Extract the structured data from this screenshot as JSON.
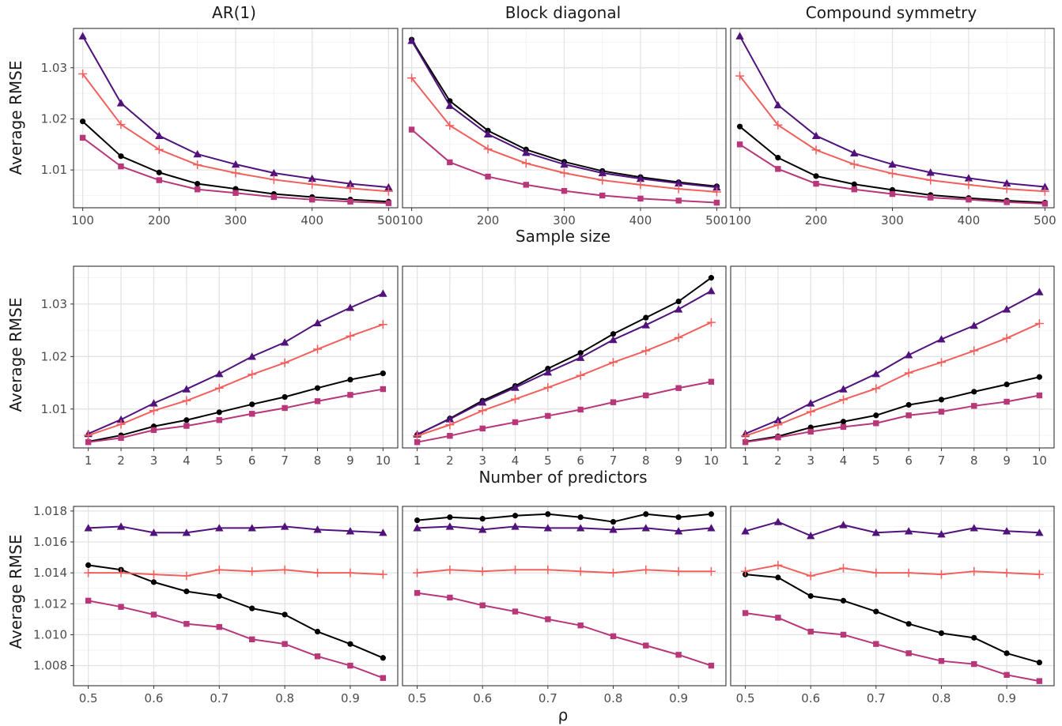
{
  "figure": {
    "facet_labels": [
      "AR(1)",
      "Block diagonal",
      "Compound symmetry"
    ],
    "y_title": "Average RMSE"
  },
  "chart_data": [
    {
      "type": "line",
      "row": "sample_size",
      "xlabel": "Sample size",
      "ylabel": "Average RMSE",
      "x": [
        100,
        150,
        200,
        250,
        300,
        350,
        400,
        450,
        500
      ],
      "xlim": [
        88,
        512
      ],
      "ylim": [
        1.0026,
        1.0377
      ],
      "xticks": [
        100,
        200,
        300,
        400,
        500
      ],
      "xtick_labels": [
        "100",
        "200",
        "300",
        "400",
        "500"
      ],
      "yticks": [
        1.01,
        1.02,
        1.03
      ],
      "ytick_labels": [
        "1.01",
        "1.02",
        "1.03"
      ],
      "grid": true,
      "panels": [
        {
          "facet": "AR(1)",
          "series": [
            {
              "color": "#000000",
              "marker": "circle",
              "values": [
                1.0195,
                1.0127,
                1.0095,
                1.0073,
                1.0063,
                1.0053,
                1.0047,
                1.0042,
                1.0038
              ]
            },
            {
              "color": "#51127c",
              "marker": "triangle",
              "values": [
                1.0362,
                1.0231,
                1.0167,
                1.0131,
                1.0111,
                1.0094,
                1.0083,
                1.0073,
                1.0066
              ]
            },
            {
              "color": "#b73779",
              "marker": "square",
              "values": [
                1.0163,
                1.0107,
                1.008,
                1.0062,
                1.0055,
                1.0047,
                1.0042,
                1.0038,
                1.0035
              ]
            },
            {
              "color": "#f1605d",
              "marker": "cross",
              "values": [
                1.0288,
                1.0189,
                1.014,
                1.011,
                1.0094,
                1.0081,
                1.0072,
                1.0064,
                1.0058
              ]
            }
          ]
        },
        {
          "facet": "Block diagonal",
          "series": [
            {
              "color": "#000000",
              "marker": "circle",
              "values": [
                1.0355,
                1.0235,
                1.0177,
                1.014,
                1.0116,
                1.0098,
                1.0086,
                1.0076,
                1.0068
              ]
            },
            {
              "color": "#51127c",
              "marker": "triangle",
              "values": [
                1.0353,
                1.0226,
                1.017,
                1.0134,
                1.0111,
                1.0094,
                1.0083,
                1.0074,
                1.0066
              ]
            },
            {
              "color": "#b73779",
              "marker": "square",
              "values": [
                1.0179,
                1.0115,
                1.0087,
                1.0071,
                1.0059,
                1.005,
                1.0044,
                1.004,
                1.0036
              ]
            },
            {
              "color": "#f1605d",
              "marker": "cross",
              "values": [
                1.028,
                1.0187,
                1.0141,
                1.0113,
                1.0094,
                1.008,
                1.0071,
                1.0063,
                1.0057
              ]
            }
          ]
        },
        {
          "facet": "Compound symmetry",
          "series": [
            {
              "color": "#000000",
              "marker": "circle",
              "values": [
                1.0185,
                1.0124,
                1.0088,
                1.0072,
                1.0061,
                1.0051,
                1.0045,
                1.004,
                1.0036
              ]
            },
            {
              "color": "#51127c",
              "marker": "triangle",
              "values": [
                1.0362,
                1.0227,
                1.0167,
                1.0133,
                1.0111,
                1.0095,
                1.0084,
                1.0074,
                1.0067
              ]
            },
            {
              "color": "#b73779",
              "marker": "square",
              "values": [
                1.015,
                1.0102,
                1.0073,
                1.0062,
                1.0053,
                1.0046,
                1.0042,
                1.0037,
                1.0034
              ]
            },
            {
              "color": "#f1605d",
              "marker": "cross",
              "values": [
                1.0284,
                1.0188,
                1.0139,
                1.0111,
                1.0093,
                1.008,
                1.0071,
                1.0063,
                1.0058
              ]
            }
          ]
        }
      ]
    },
    {
      "type": "line",
      "row": "predictors",
      "xlabel": "Number of predictors",
      "ylabel": "Average RMSE",
      "x": [
        1,
        2,
        3,
        4,
        5,
        6,
        7,
        8,
        9,
        10
      ],
      "xlim": [
        0.55,
        10.45
      ],
      "ylim": [
        1.0026,
        1.0372
      ],
      "xticks": [
        1,
        2,
        3,
        4,
        5,
        6,
        7,
        8,
        9,
        10
      ],
      "xtick_labels": [
        "1",
        "2",
        "3",
        "4",
        "5",
        "6",
        "7",
        "8",
        "9",
        "10"
      ],
      "yticks": [
        1.01,
        1.02,
        1.03
      ],
      "ytick_labels": [
        "1.01",
        "1.02",
        "1.03"
      ],
      "grid": true,
      "panels": [
        {
          "facet": "AR(1)",
          "series": [
            {
              "color": "#000000",
              "marker": "circle",
              "values": [
                1.0038,
                1.005,
                1.0067,
                1.0079,
                1.0094,
                1.0109,
                1.0123,
                1.014,
                1.0156,
                1.0168
              ]
            },
            {
              "color": "#51127c",
              "marker": "triangle",
              "values": [
                1.0053,
                1.008,
                1.0111,
                1.0138,
                1.0167,
                1.02,
                1.0227,
                1.0264,
                1.0293,
                1.032
              ]
            },
            {
              "color": "#b73779",
              "marker": "square",
              "values": [
                1.0037,
                1.0045,
                1.006,
                1.0068,
                1.0079,
                1.0091,
                1.0102,
                1.0115,
                1.0127,
                1.0138
              ]
            },
            {
              "color": "#f1605d",
              "marker": "cross",
              "values": [
                1.005,
                1.0071,
                1.0097,
                1.0116,
                1.014,
                1.0166,
                1.0188,
                1.0214,
                1.0239,
                1.0261
              ]
            }
          ]
        },
        {
          "facet": "Block diagonal",
          "series": [
            {
              "color": "#000000",
              "marker": "circle",
              "values": [
                1.0051,
                1.0082,
                1.0116,
                1.0144,
                1.0177,
                1.0207,
                1.0243,
                1.0274,
                1.0305,
                1.035
              ]
            },
            {
              "color": "#51127c",
              "marker": "triangle",
              "values": [
                1.0052,
                1.0081,
                1.0113,
                1.0141,
                1.017,
                1.0198,
                1.0232,
                1.026,
                1.029,
                1.0325
              ]
            },
            {
              "color": "#b73779",
              "marker": "square",
              "values": [
                1.0037,
                1.0049,
                1.0063,
                1.0075,
                1.0087,
                1.0099,
                1.0113,
                1.0126,
                1.014,
                1.0152
              ]
            },
            {
              "color": "#f1605d",
              "marker": "cross",
              "values": [
                1.0049,
                1.007,
                1.0097,
                1.0119,
                1.0141,
                1.0164,
                1.0189,
                1.0211,
                1.0236,
                1.0265
              ]
            }
          ]
        },
        {
          "facet": "Compound symmetry",
          "series": [
            {
              "color": "#000000",
              "marker": "circle",
              "values": [
                1.0038,
                1.0048,
                1.0065,
                1.0076,
                1.0088,
                1.0108,
                1.0118,
                1.0133,
                1.0147,
                1.0161
              ]
            },
            {
              "color": "#51127c",
              "marker": "triangle",
              "values": [
                1.0053,
                1.0079,
                1.0111,
                1.0138,
                1.0167,
                1.0203,
                1.0233,
                1.0259,
                1.029,
                1.0323
              ]
            },
            {
              "color": "#b73779",
              "marker": "square",
              "values": [
                1.0037,
                1.0046,
                1.0057,
                1.0066,
                1.0073,
                1.0088,
                1.0095,
                1.0106,
                1.0114,
                1.0126
              ]
            },
            {
              "color": "#f1605d",
              "marker": "cross",
              "values": [
                1.0049,
                1.007,
                1.0095,
                1.0118,
                1.0139,
                1.0169,
                1.0189,
                1.0211,
                1.0235,
                1.0263
              ]
            }
          ]
        }
      ]
    },
    {
      "type": "line",
      "row": "rho",
      "xlabel": "ρ",
      "ylabel": "Average RMSE",
      "x": [
        0.5,
        0.55,
        0.6,
        0.65,
        0.7,
        0.75,
        0.8,
        0.85,
        0.9,
        0.95
      ],
      "xlim": [
        0.4775,
        0.9725
      ],
      "ylim": [
        1.0067,
        1.0183
      ],
      "xticks": [
        0.5,
        0.6,
        0.7,
        0.8,
        0.9
      ],
      "xtick_labels": [
        "0.5",
        "0.6",
        "0.7",
        "0.8",
        "0.9"
      ],
      "yticks": [
        1.008,
        1.01,
        1.012,
        1.014,
        1.016,
        1.018
      ],
      "ytick_labels": [
        "1.008",
        "1.010",
        "1.012",
        "1.014",
        "1.016",
        "1.018"
      ],
      "grid": true,
      "panels": [
        {
          "facet": "AR(1)",
          "series": [
            {
              "color": "#000000",
              "marker": "circle",
              "values": [
                1.0145,
                1.0142,
                1.0134,
                1.0128,
                1.0125,
                1.0117,
                1.0113,
                1.0102,
                1.0094,
                1.0085
              ]
            },
            {
              "color": "#51127c",
              "marker": "triangle",
              "values": [
                1.0169,
                1.017,
                1.0166,
                1.0166,
                1.0169,
                1.0169,
                1.017,
                1.0168,
                1.0167,
                1.0166
              ]
            },
            {
              "color": "#b73779",
              "marker": "square",
              "values": [
                1.0122,
                1.0118,
                1.0113,
                1.0107,
                1.0105,
                1.0097,
                1.0094,
                1.0086,
                1.008,
                1.0072
              ]
            },
            {
              "color": "#f1605d",
              "marker": "cross",
              "values": [
                1.014,
                1.014,
                1.0139,
                1.0138,
                1.0142,
                1.0141,
                1.0142,
                1.014,
                1.014,
                1.0139
              ]
            }
          ]
        },
        {
          "facet": "Block diagonal",
          "series": [
            {
              "color": "#000000",
              "marker": "circle",
              "values": [
                1.0174,
                1.0176,
                1.0175,
                1.0177,
                1.0178,
                1.0176,
                1.0173,
                1.0178,
                1.0176,
                1.0178
              ]
            },
            {
              "color": "#51127c",
              "marker": "triangle",
              "values": [
                1.0169,
                1.017,
                1.0168,
                1.017,
                1.0169,
                1.0169,
                1.0168,
                1.0169,
                1.0167,
                1.0169
              ]
            },
            {
              "color": "#b73779",
              "marker": "square",
              "values": [
                1.0127,
                1.0124,
                1.0119,
                1.0115,
                1.011,
                1.0106,
                1.0099,
                1.0093,
                1.0087,
                1.008
              ]
            },
            {
              "color": "#f1605d",
              "marker": "cross",
              "values": [
                1.014,
                1.0142,
                1.0141,
                1.0142,
                1.0142,
                1.0141,
                1.014,
                1.0142,
                1.0141,
                1.0141
              ]
            }
          ]
        },
        {
          "facet": "Compound symmetry",
          "series": [
            {
              "color": "#000000",
              "marker": "circle",
              "values": [
                1.0139,
                1.0137,
                1.0125,
                1.0122,
                1.0115,
                1.0107,
                1.0101,
                1.0098,
                1.0088,
                1.0082
              ]
            },
            {
              "color": "#51127c",
              "marker": "triangle",
              "values": [
                1.0167,
                1.0173,
                1.0164,
                1.0171,
                1.0166,
                1.0167,
                1.0165,
                1.0169,
                1.0167,
                1.0166
              ]
            },
            {
              "color": "#b73779",
              "marker": "square",
              "values": [
                1.0114,
                1.0111,
                1.0102,
                1.01,
                1.0094,
                1.0088,
                1.0083,
                1.0081,
                1.0074,
                1.007
              ]
            },
            {
              "color": "#f1605d",
              "marker": "cross",
              "values": [
                1.0141,
                1.0145,
                1.0138,
                1.0143,
                1.014,
                1.014,
                1.0139,
                1.0141,
                1.014,
                1.0139
              ]
            }
          ]
        }
      ]
    }
  ]
}
